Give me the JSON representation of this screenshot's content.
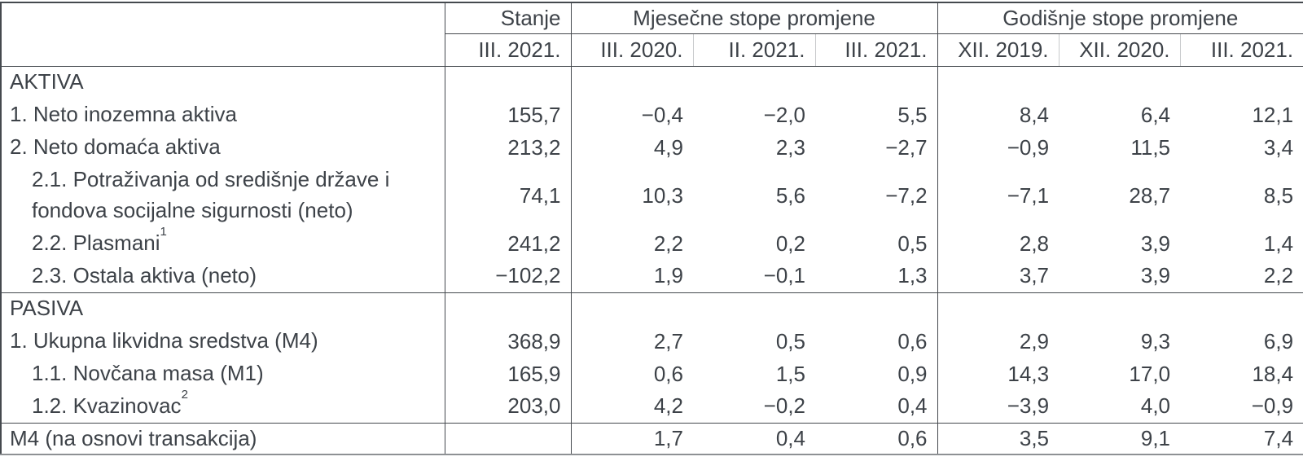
{
  "colors": {
    "text": "#3d4248",
    "line_dark": "#45494e",
    "line_light": "#c8cacc",
    "line_bottom": "#8e9194",
    "background": "#ffffff"
  },
  "table": {
    "header": {
      "corner_label": "",
      "stanje_label": "Stanje",
      "monthly_group_label": "Mjesečne stope promjene",
      "annual_group_label": "Godišnje stope promjene",
      "stanje_period": "III. 2021.",
      "monthly_periods": [
        "III. 2020.",
        "II. 2021.",
        "III. 2021."
      ],
      "annual_periods": [
        "XII. 2019.",
        "XII. 2020.",
        "III. 2021."
      ]
    },
    "rows": [
      {
        "type": "section",
        "indent": 0,
        "label": "AKTIVA",
        "values": [
          "",
          "",
          "",
          "",
          "",
          "",
          ""
        ]
      },
      {
        "type": "item",
        "indent": 0,
        "label": "1. Neto inozemna aktiva",
        "values": [
          "155,7",
          "−0,4",
          "−2,0",
          "5,5",
          "8,4",
          "6,4",
          "12,1"
        ]
      },
      {
        "type": "item",
        "indent": 0,
        "label": "2. Neto domaća aktiva",
        "values": [
          "213,2",
          "4,9",
          "2,3",
          "−2,7",
          "−0,9",
          "11,5",
          "3,4"
        ]
      },
      {
        "type": "subitem",
        "indent": 1,
        "tall": true,
        "label": "2.1. Potraživanja od središnje države i fondova socijalne sigurnosti (neto)",
        "values": [
          "74,1",
          "10,3",
          "5,6",
          "−7,2",
          "−7,1",
          "28,7",
          "8,5"
        ]
      },
      {
        "type": "subitem",
        "indent": 1,
        "label": "2.2. Plasmani",
        "sup": "1",
        "values": [
          "241,2",
          "2,2",
          "0,2",
          "0,5",
          "2,8",
          "3,9",
          "1,4"
        ]
      },
      {
        "type": "subitem",
        "indent": 1,
        "label": "2.3. Ostala aktiva (neto)",
        "values": [
          "−102,2",
          "1,9",
          "−0,1",
          "1,3",
          "3,7",
          "3,9",
          "2,2"
        ]
      },
      {
        "type": "section",
        "indent": 0,
        "rule_above": true,
        "label": "PASIVA",
        "values": [
          "",
          "",
          "",
          "",
          "",
          "",
          ""
        ]
      },
      {
        "type": "item",
        "indent": 0,
        "label": "1. Ukupna likvidna sredstva (M4)",
        "values": [
          "368,9",
          "2,7",
          "0,5",
          "0,6",
          "2,9",
          "9,3",
          "6,9"
        ]
      },
      {
        "type": "subitem",
        "indent": 1,
        "label": "1.1. Novčana masa (M1)",
        "values": [
          "165,9",
          "0,6",
          "1,5",
          "0,9",
          "14,3",
          "17,0",
          "18,4"
        ]
      },
      {
        "type": "subitem",
        "indent": 1,
        "label": "1.2. Kvazinovac",
        "sup": "2",
        "values": [
          "203,0",
          "4,2",
          "−0,2",
          "0,4",
          "−3,9",
          "4,0",
          "−0,9"
        ]
      },
      {
        "type": "total",
        "indent": 0,
        "rule_above": true,
        "label": "M4 (na osnovi transakcija)",
        "values": [
          "",
          "1,7",
          "0,4",
          "0,6",
          "3,5",
          "9,1",
          "7,4"
        ]
      }
    ]
  }
}
